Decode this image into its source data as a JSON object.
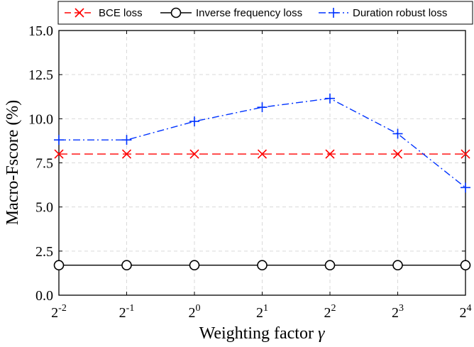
{
  "chart_data": {
    "type": "line",
    "xlabel_text": "Weighting factor ",
    "xlabel_symbol": "γ",
    "ylabel": "Macro-Fscore (%)",
    "x_base": "2",
    "x_exponents": [
      "-2",
      "-1",
      "0",
      "1",
      "2",
      "3",
      "4"
    ],
    "ylim": [
      0,
      15
    ],
    "y_ticks": [
      0,
      2.5,
      5,
      7.5,
      10,
      12.5,
      15
    ],
    "y_tick_labels": [
      "0.0",
      "2.5",
      "5.0",
      "7.5",
      "10.0",
      "12.5",
      "15.0"
    ],
    "grid": true,
    "legend_position": "top",
    "series": [
      {
        "name": "BCE loss",
        "values": [
          8.0,
          8.0,
          8.0,
          8.0,
          8.0,
          8.0,
          8.0
        ],
        "color": "#ff0000",
        "marker": "x",
        "line": "dashed"
      },
      {
        "name": "Inverse frequency loss",
        "values": [
          1.7,
          1.7,
          1.7,
          1.7,
          1.7,
          1.7,
          1.7
        ],
        "color": "#000000",
        "marker": "circle",
        "line": "solid"
      },
      {
        "name": "Duration robust loss",
        "values": [
          8.8,
          8.8,
          9.85,
          10.65,
          11.15,
          9.15,
          6.1
        ],
        "color": "#0033ff",
        "marker": "plus",
        "line": "dashdot"
      }
    ]
  }
}
